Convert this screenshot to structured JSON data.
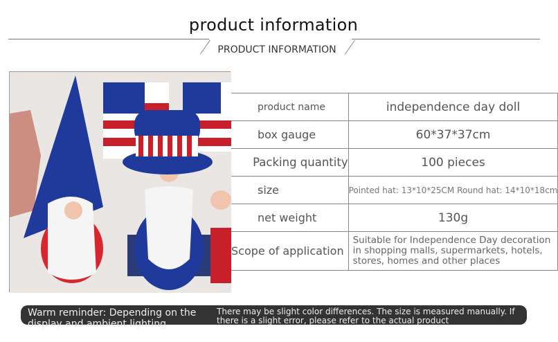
{
  "header": {
    "title": "product information",
    "subtitle": "PRODUCT INFORMATION"
  },
  "table": {
    "rows": [
      {
        "label": "product name",
        "value": "independence day doll"
      },
      {
        "label": "box gauge",
        "value": "60*37*37cm"
      },
      {
        "label": "Packing quantity",
        "value": "100 pieces"
      },
      {
        "label": "size",
        "value": "Pointed hat: 13*10*25CM Round hat: 14*10*18cm"
      },
      {
        "label": "net weight",
        "value": "130g"
      },
      {
        "label": "Scope of application",
        "value": "Suitable for Independence Day decoration in shopping malls, supermarkets, hotels, stores, homes and other places"
      }
    ]
  },
  "photo": {
    "alt": "independence day gnome dolls with american flags"
  },
  "reminder": {
    "left": "Warm reminder: Depending on the display and ambient lighting",
    "right": "There may be slight color differences. The size is measured manually. If there is a slight error, please refer to the actual product"
  },
  "colors": {
    "red": "#c8202a",
    "blue": "#1f3a9a",
    "bar": "#333333"
  }
}
